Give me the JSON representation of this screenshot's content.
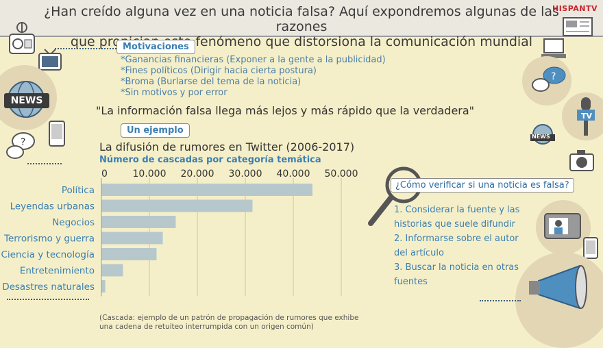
{
  "header": {
    "title_line1": "¿Han creído alguna vez en una noticia falsa? Aquí expondremos algunas de las razones",
    "title_line2": "que propician este fenómeno que distorsiona la comunicación mundial",
    "brand": "HISPANTV"
  },
  "motivaciones": {
    "label": "Motivaciones",
    "items": [
      "*Ganancias financieras (Exponer a la gente a la publicidad)",
      "*Fines políticos (Dirigir hacia cierta postura)",
      "*Broma (Burlarse del tema de la noticia)",
      "*Sin motivos y por error"
    ]
  },
  "quote": "\"La información falsa llega más lejos y más rápido que la verdadera\"",
  "ejemplo_label": "Un ejemplo",
  "icons": {
    "news_label": "NEWS",
    "tv_label": "TV",
    "news_small": "NEWS"
  },
  "chart_data": {
    "type": "bar",
    "orientation": "horizontal",
    "title": "La difusión de rumores en Twitter (2006-2017)",
    "subtitle": "Número de cascadas por categoría temática",
    "categories": [
      "Política",
      "Leyendas urbanas",
      "Negocios",
      "Terrorismo y guerra",
      "Ciencia y tecnología",
      "Entretenimiento",
      "Desastres naturales"
    ],
    "values": [
      44000,
      31500,
      15500,
      12800,
      11500,
      4500,
      800
    ],
    "xlim": [
      0,
      50000
    ],
    "xticks": [
      0,
      10000,
      20000,
      30000,
      40000,
      50000
    ],
    "xtick_labels": [
      "0",
      "10.000",
      "20.000",
      "30.000",
      "40.000",
      "50.000"
    ],
    "bar_color": "#b7c8cd",
    "grid": true
  },
  "footnote": {
    "line1": "(Cascada: ejemplo de un patrón de propagación de rumores que exhibe",
    "line2": "una cadena de retuiteo interrumpida con un origen común)"
  },
  "verify": {
    "title": "¿Cómo verificar si una noticia es falsa?",
    "steps": [
      "1. Considerar la fuente y las",
      "historias que suele difundir",
      "2. Informarse sobre el autor",
      "del artículo",
      "3. Buscar la noticia en otras",
      "fuentes"
    ]
  },
  "colors": {
    "background": "#f5efc9",
    "accent": "#3b7fb0",
    "bar": "#b7c8cd"
  }
}
